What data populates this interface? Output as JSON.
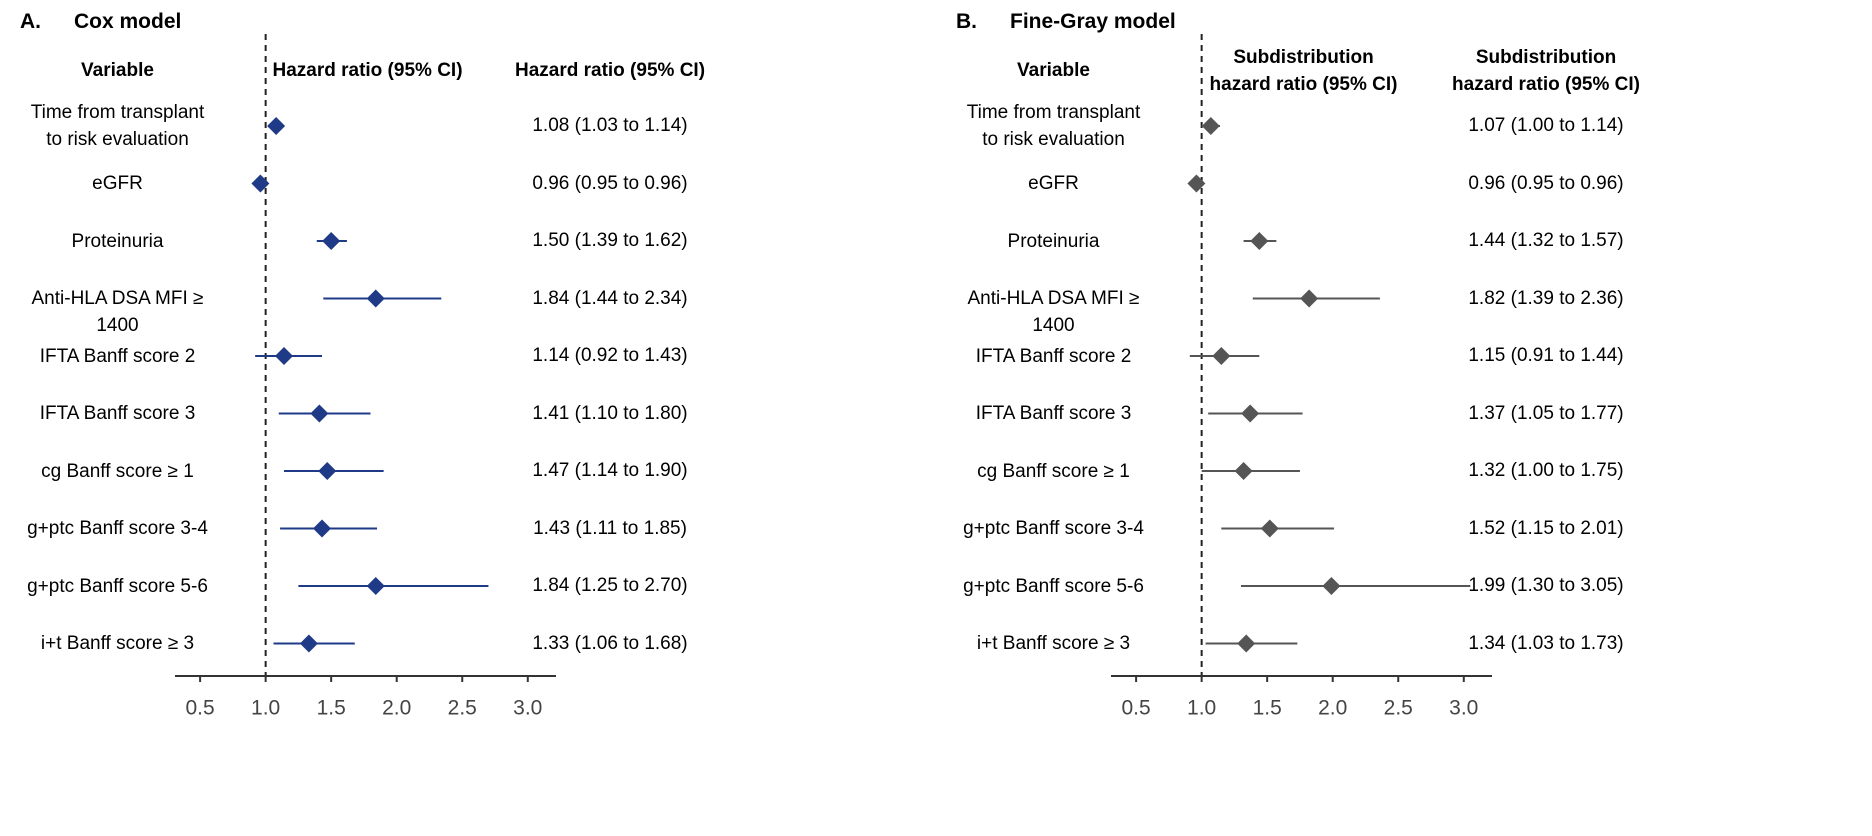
{
  "chart_data": [
    {
      "type": "forest",
      "panel_label": "A.",
      "title": "Cox model",
      "variable_header": "Variable",
      "plot_header": "Hazard ratio (95% CI)",
      "values_header": "Hazard ratio (95% CI)",
      "reference_line": 1.0,
      "xlim": [
        0.4,
        3.2
      ],
      "x_ticks": [
        "0.5",
        "1.0",
        "1.5",
        "2.0",
        "2.5",
        "3.0"
      ],
      "marker_color": "#1f3a87",
      "rows": [
        {
          "variable": "Time from transplant\nto risk evaluation",
          "estimate": 1.08,
          "lower": 1.03,
          "upper": 1.14,
          "label": "1.08 (1.03 to 1.14)"
        },
        {
          "variable": "eGFR",
          "estimate": 0.96,
          "lower": 0.95,
          "upper": 0.96,
          "label": "0.96 (0.95 to 0.96)"
        },
        {
          "variable": "Proteinuria",
          "estimate": 1.5,
          "lower": 1.39,
          "upper": 1.62,
          "label": "1.50 (1.39 to 1.62)"
        },
        {
          "variable": "Anti-HLA DSA MFI ≥ 1400",
          "estimate": 1.84,
          "lower": 1.44,
          "upper": 2.34,
          "label": "1.84 (1.44 to 2.34)"
        },
        {
          "variable": "IFTA Banff score 2",
          "estimate": 1.14,
          "lower": 0.92,
          "upper": 1.43,
          "label": "1.14 (0.92 to 1.43)"
        },
        {
          "variable": "IFTA Banff score 3",
          "estimate": 1.41,
          "lower": 1.1,
          "upper": 1.8,
          "label": "1.41 (1.10 to 1.80)"
        },
        {
          "variable": "cg Banff score ≥ 1",
          "estimate": 1.47,
          "lower": 1.14,
          "upper": 1.9,
          "label": "1.47 (1.14 to 1.90)"
        },
        {
          "variable": "g+ptc Banff score 3-4",
          "estimate": 1.43,
          "lower": 1.11,
          "upper": 1.85,
          "label": "1.43 (1.11 to 1.85)"
        },
        {
          "variable": "g+ptc Banff score 5-6",
          "estimate": 1.84,
          "lower": 1.25,
          "upper": 2.7,
          "label": "1.84 (1.25 to 2.70)"
        },
        {
          "variable": "i+t Banff score ≥ 3",
          "estimate": 1.33,
          "lower": 1.06,
          "upper": 1.68,
          "label": "1.33 (1.06 to 1.68)"
        }
      ]
    },
    {
      "type": "forest",
      "panel_label": "B.",
      "title": "Fine-Gray model",
      "variable_header": "Variable",
      "plot_header": "Subdistribution\nhazard ratio (95% CI)",
      "values_header": "Subdistribution\nhazard ratio (95% CI)",
      "reference_line": 1.0,
      "xlim": [
        0.4,
        3.2
      ],
      "x_ticks": [
        "0.5",
        "1.0",
        "1.5",
        "2.0",
        "2.5",
        "3.0"
      ],
      "marker_color": "#555555",
      "rows": [
        {
          "variable": "Time from transplant\nto risk evaluation",
          "estimate": 1.07,
          "lower": 1.0,
          "upper": 1.14,
          "label": "1.07 (1.00 to 1.14)"
        },
        {
          "variable": "eGFR",
          "estimate": 0.96,
          "lower": 0.95,
          "upper": 0.96,
          "label": "0.96 (0.95 to 0.96)"
        },
        {
          "variable": "Proteinuria",
          "estimate": 1.44,
          "lower": 1.32,
          "upper": 1.57,
          "label": "1.44 (1.32 to 1.57)"
        },
        {
          "variable": "Anti-HLA DSA MFI ≥ 1400",
          "estimate": 1.82,
          "lower": 1.39,
          "upper": 2.36,
          "label": "1.82 (1.39 to 2.36)"
        },
        {
          "variable": "IFTA Banff score 2",
          "estimate": 1.15,
          "lower": 0.91,
          "upper": 1.44,
          "label": "1.15 (0.91 to 1.44)"
        },
        {
          "variable": "IFTA Banff score 3",
          "estimate": 1.37,
          "lower": 1.05,
          "upper": 1.77,
          "label": "1.37 (1.05 to 1.77)"
        },
        {
          "variable": "cg Banff score ≥ 1",
          "estimate": 1.32,
          "lower": 1.0,
          "upper": 1.75,
          "label": "1.32 (1.00 to 1.75)"
        },
        {
          "variable": "g+ptc Banff score 3-4",
          "estimate": 1.52,
          "lower": 1.15,
          "upper": 2.01,
          "label": "1.52 (1.15 to 2.01)"
        },
        {
          "variable": "g+ptc Banff score 5-6",
          "estimate": 1.99,
          "lower": 1.3,
          "upper": 3.05,
          "label": "1.99 (1.30 to 3.05)"
        },
        {
          "variable": "i+t Banff score ≥ 3",
          "estimate": 1.34,
          "lower": 1.03,
          "upper": 1.73,
          "label": "1.34 (1.03 to 1.73)"
        }
      ]
    }
  ]
}
